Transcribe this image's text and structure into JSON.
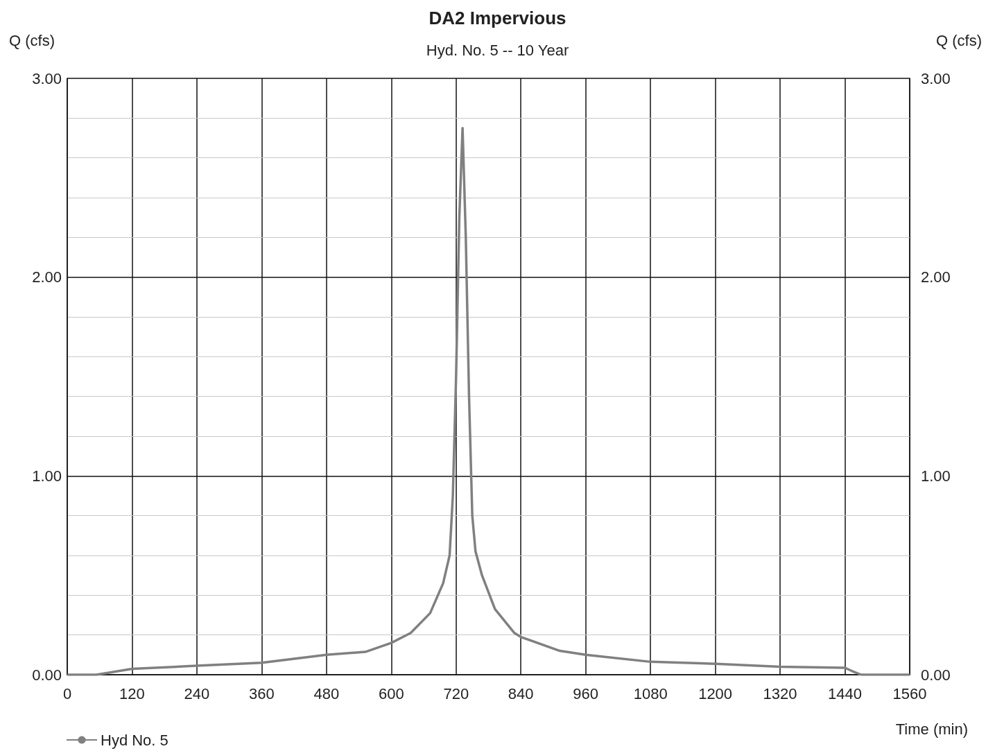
{
  "chart_data": {
    "type": "line",
    "title": "DA2 Impervious",
    "subtitle": "Hyd. No. 5 -- 10 Year",
    "xlabel": "Time (min)",
    "ylabel": "Q (cfs)",
    "y2label": "Q (cfs)",
    "series": [
      {
        "name": "Hyd No. 5",
        "color": "#808080",
        "x": [
          0,
          54,
          120,
          240,
          360,
          480,
          552,
          600,
          636,
          672,
          696,
          708,
          714,
          720,
          726,
          732,
          738,
          744,
          750,
          756,
          768,
          792,
          828,
          840,
          912,
          960,
          1080,
          1200,
          1320,
          1440,
          1452,
          1470,
          1560
        ],
        "values": [
          0,
          0,
          0.03,
          0.045,
          0.06,
          0.1,
          0.115,
          0.16,
          0.21,
          0.31,
          0.46,
          0.6,
          0.9,
          1.5,
          2.3,
          2.75,
          2.2,
          1.4,
          0.8,
          0.62,
          0.5,
          0.33,
          0.21,
          0.19,
          0.12,
          0.1,
          0.065,
          0.055,
          0.04,
          0.035,
          0.02,
          0,
          0
        ]
      }
    ],
    "xlim": [
      0,
      1560
    ],
    "xticks": [
      0,
      120,
      240,
      360,
      480,
      600,
      720,
      840,
      960,
      1080,
      1200,
      1320,
      1440,
      1560
    ],
    "ylim": [
      0,
      3
    ],
    "yticks": [
      {
        "value": 0,
        "label": "0.00"
      },
      {
        "value": 0.2,
        "label": null
      },
      {
        "value": 0.4,
        "label": null
      },
      {
        "value": 0.6,
        "label": null
      },
      {
        "value": 0.8,
        "label": null
      },
      {
        "value": 1,
        "label": "1.00"
      },
      {
        "value": 1.2,
        "label": null
      },
      {
        "value": 1.4,
        "label": null
      },
      {
        "value": 1.6,
        "label": null
      },
      {
        "value": 1.8,
        "label": null
      },
      {
        "value": 2,
        "label": "2.00"
      },
      {
        "value": 2.2,
        "label": null
      },
      {
        "value": 2.4,
        "label": null
      },
      {
        "value": 2.6,
        "label": null
      },
      {
        "value": 2.8,
        "label": null
      },
      {
        "value": 3,
        "label": "3.00"
      }
    ],
    "y2lim": [
      0,
      3
    ],
    "y2ticks": [
      {
        "value": 0,
        "label": "0.00"
      },
      {
        "value": 1,
        "label": "1.00"
      },
      {
        "value": 2,
        "label": "2.00"
      },
      {
        "value": 3,
        "label": "3.00"
      }
    ],
    "grid": true,
    "legend": "bottom left",
    "marker": "none",
    "line_style": "solid"
  }
}
